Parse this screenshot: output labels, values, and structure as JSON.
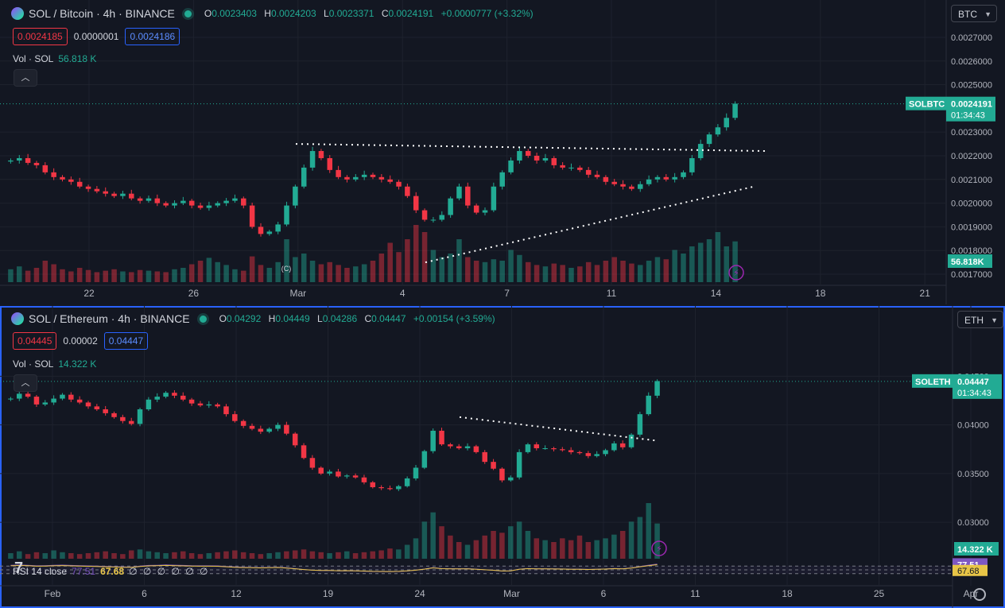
{
  "colors": {
    "up": "#22ab94",
    "down": "#f23645",
    "bg": "#131722",
    "grid": "#1e222d",
    "accent": "#2962ff",
    "rsi": "#7e57c2",
    "rsi_ma": "#e8c547"
  },
  "pane1": {
    "title": {
      "symbol": "SOL / Bitcoin · 4h · BINANCE"
    },
    "ohlc": {
      "o_label": "O",
      "o": "0.0023403",
      "h_label": "H",
      "h": "0.0024203",
      "l_label": "L",
      "l": "0.0023371",
      "c_label": "C",
      "c": "0.0024191",
      "change": "+0.0000777 (+3.32%)"
    },
    "quote": {
      "sell": "0.0024185",
      "spread": "0.0000001",
      "buy": "0.0024186"
    },
    "volume": {
      "label": "Vol · SOL",
      "value": "56.818 K"
    },
    "collapse_icon": "chevron-up-icon",
    "currency": "BTC",
    "price_ticks": [
      "0.0027000",
      "0.0026000",
      "0.0025000",
      "0.0023000",
      "0.0022000",
      "0.0021000",
      "0.0020000",
      "0.0019000",
      "0.0018000",
      "0.0017000"
    ],
    "price_label": {
      "ticker": "SOLBTC",
      "price": "0.0024191",
      "countdown": "01:34:43"
    },
    "volume_label": "56.818K",
    "x_ticks": [
      "22",
      "26",
      "Mar",
      "4",
      "7",
      "11",
      "14",
      "18",
      "21"
    ],
    "marker": "C"
  },
  "pane2": {
    "title": {
      "symbol": "SOL / Ethereum · 4h · BINANCE"
    },
    "ohlc": {
      "o_label": "O",
      "o": "0.04292",
      "h_label": "H",
      "h": "0.04449",
      "l_label": "L",
      "l": "0.04286",
      "c_label": "C",
      "c": "0.04447",
      "change": "+0.00154 (+3.59%)"
    },
    "quote": {
      "sell": "0.04445",
      "spread": "0.00002",
      "buy": "0.04447"
    },
    "volume": {
      "label": "Vol · SOL",
      "value": "14.322 K"
    },
    "currency": "ETH",
    "price_ticks": [
      "0.04500",
      "0.04000",
      "0.03500",
      "0.03000"
    ],
    "price_label": {
      "ticker": "SOLETH",
      "price": "0.04447",
      "countdown": "01:34:43"
    },
    "volume_label": "14.322 K",
    "rsi": {
      "label": "RSI 14 close",
      "value": "77.51",
      "ma": "67.68",
      "placeholders": "∅ ∅ ∅ ∅ ∅ ∅"
    },
    "rsi_labels": {
      "value": "77.51",
      "ma": "67.68"
    },
    "x_ticks": [
      "Feb",
      "6",
      "12",
      "19",
      "24",
      "Mar",
      "6",
      "11",
      "18",
      "25",
      "Apr"
    ]
  },
  "chart_data": [
    {
      "type": "candlestick",
      "title": "SOL / Bitcoin · 4h · BINANCE",
      "interval": "4h",
      "y_scale": {
        "min": 0.00168,
        "max": 0.00273
      },
      "x_labels": [
        "22",
        "26",
        "Mar",
        "4",
        "7",
        "11",
        "14",
        "18",
        "21"
      ],
      "last_price": 0.0024191,
      "series_close": [
        0.00218,
        0.00219,
        0.00217,
        0.00216,
        0.00213,
        0.00211,
        0.0021,
        0.00209,
        0.00207,
        0.00206,
        0.00205,
        0.00204,
        0.00203,
        0.00204,
        0.00202,
        0.00201,
        0.00202,
        0.002,
        0.00199,
        0.002,
        0.00201,
        0.00199,
        0.00198,
        0.00199,
        0.002,
        0.00201,
        0.00202,
        0.00199,
        0.0019,
        0.00187,
        0.00188,
        0.00191,
        0.00199,
        0.00207,
        0.00215,
        0.00222,
        0.00219,
        0.00214,
        0.00211,
        0.0021,
        0.00211,
        0.00212,
        0.00211,
        0.0021,
        0.00209,
        0.00207,
        0.00203,
        0.00197,
        0.00193,
        0.00193,
        0.00195,
        0.00202,
        0.00207,
        0.00199,
        0.00196,
        0.00197,
        0.00207,
        0.00213,
        0.00218,
        0.00222,
        0.0022,
        0.00218,
        0.00219,
        0.00216,
        0.00215,
        0.00215,
        0.00214,
        0.00212,
        0.00211,
        0.00209,
        0.00208,
        0.00207,
        0.00206,
        0.00208,
        0.0021,
        0.00211,
        0.0021,
        0.00211,
        0.00213,
        0.00219,
        0.00225,
        0.00229,
        0.00232,
        0.00236,
        0.00242
      ],
      "volume": [
        18,
        22,
        16,
        20,
        30,
        25,
        18,
        15,
        20,
        17,
        14,
        16,
        18,
        15,
        14,
        17,
        16,
        15,
        14,
        18,
        20,
        25,
        30,
        34,
        28,
        24,
        18,
        16,
        36,
        24,
        20,
        28,
        60,
        35,
        40,
        30,
        25,
        28,
        24,
        20,
        22,
        25,
        30,
        40,
        55,
        42,
        60,
        80,
        70,
        45,
        35,
        40,
        60,
        35,
        30,
        28,
        32,
        30,
        45,
        38,
        28,
        24,
        22,
        26,
        24,
        20,
        22,
        28,
        24,
        30,
        35,
        30,
        26,
        24,
        30,
        35,
        32,
        45,
        40,
        50,
        55,
        60,
        70,
        50,
        57
      ],
      "trendlines": [
        {
          "name": "resistance",
          "from": 0.00225,
          "to": 0.00222
        },
        {
          "name": "support",
          "from": 0.00175,
          "to": 0.00207
        }
      ]
    },
    {
      "type": "candlestick",
      "title": "SOL / Ethereum · 4h · BINANCE",
      "interval": "4h",
      "y_scale": {
        "min": 0.0287,
        "max": 0.0465
      },
      "x_labels": [
        "Feb",
        "6",
        "12",
        "19",
        "24",
        "Mar",
        "6",
        "11",
        "18",
        "25",
        "Apr"
      ],
      "last_price": 0.04447,
      "series_close": [
        0.0427,
        0.0432,
        0.0429,
        0.0421,
        0.0423,
        0.0427,
        0.0431,
        0.0426,
        0.0423,
        0.0419,
        0.0416,
        0.0412,
        0.0408,
        0.0404,
        0.0401,
        0.0416,
        0.0426,
        0.0429,
        0.0433,
        0.043,
        0.0426,
        0.0422,
        0.042,
        0.0421,
        0.0419,
        0.0411,
        0.0404,
        0.0399,
        0.0396,
        0.0393,
        0.0396,
        0.04,
        0.0391,
        0.0379,
        0.0366,
        0.0356,
        0.035,
        0.0352,
        0.0347,
        0.0348,
        0.0346,
        0.0341,
        0.0336,
        0.0335,
        0.0334,
        0.0337,
        0.0345,
        0.0356,
        0.0373,
        0.0394,
        0.038,
        0.0378,
        0.0376,
        0.0378,
        0.0372,
        0.0362,
        0.0355,
        0.0343,
        0.0346,
        0.0372,
        0.038,
        0.0376,
        0.0376,
        0.0375,
        0.0374,
        0.0372,
        0.0371,
        0.0368,
        0.037,
        0.0374,
        0.0381,
        0.0377,
        0.039,
        0.0411,
        0.043,
        0.0445
      ],
      "volume": [
        6,
        8,
        5,
        7,
        6,
        9,
        7,
        6,
        5,
        6,
        7,
        8,
        6,
        5,
        9,
        10,
        8,
        7,
        6,
        7,
        8,
        6,
        5,
        6,
        7,
        8,
        9,
        7,
        6,
        5,
        6,
        7,
        8,
        9,
        10,
        8,
        7,
        6,
        7,
        8,
        6,
        7,
        8,
        9,
        11,
        10,
        15,
        22,
        40,
        50,
        35,
        25,
        18,
        15,
        20,
        25,
        30,
        28,
        35,
        40,
        30,
        22,
        20,
        18,
        22,
        20,
        25,
        18,
        20,
        22,
        26,
        30,
        40,
        45,
        60,
        38
      ],
      "trendlines": [
        {
          "name": "resistance",
          "from": 0.0408,
          "to": 0.0384
        }
      ],
      "rsi": {
        "period": 14,
        "source": "close",
        "value": 77.51,
        "ma": 67.68,
        "band_upper": 70,
        "band_lower": 30
      }
    }
  ]
}
